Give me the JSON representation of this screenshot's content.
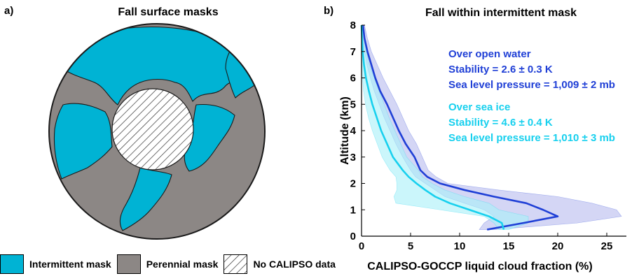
{
  "panel_a": {
    "label": "a)",
    "title": "Fall surface masks",
    "colors": {
      "intermittent": "#00b3d4",
      "perennial": "#8c8785",
      "outline": "#1a1a1a"
    },
    "legend": [
      {
        "name": "intermittent-mask",
        "label": "Intermittent mask",
        "color": "#00b3d4",
        "pattern": false
      },
      {
        "name": "perennial-mask",
        "label": "Perennial mask",
        "color": "#8c8785",
        "pattern": false
      },
      {
        "name": "no-calipso-data",
        "label": "No CALIPSO data",
        "color": "#ffffff",
        "pattern": true
      }
    ]
  },
  "chart_data": {
    "type": "line",
    "panel_label": "b)",
    "title": "Fall within intermittent mask",
    "xlabel": "CALIPSO-GOCCP liquid cloud fraction (%)",
    "ylabel": "Altitude (km)",
    "xlim": [
      0,
      27
    ],
    "ylim": [
      0,
      8
    ],
    "xticks": [
      0,
      5,
      10,
      15,
      20,
      25
    ],
    "yticks": [
      0,
      1,
      2,
      3,
      4,
      5,
      6,
      7,
      8
    ],
    "grid": false,
    "series": [
      {
        "name": "Over open water",
        "color": "#1f3fd6",
        "band_color": "#b8bbee",
        "annotation": [
          "Over open water",
          "Stability = 2.6 ± 0.3 K",
          "Sea level pressure = 1,009 ± 2 mb"
        ],
        "altitude": [
          0.25,
          0.5,
          0.75,
          1.0,
          1.25,
          1.5,
          1.75,
          2.0,
          2.25,
          2.5,
          2.75,
          3.0,
          3.5,
          4.0,
          4.5,
          5.0,
          5.5,
          6.0,
          6.5,
          7.0,
          7.5,
          8.0
        ],
        "x": [
          12.8,
          16.5,
          20.0,
          18.5,
          16.8,
          13.5,
          10.5,
          8.0,
          6.7,
          6.0,
          5.7,
          5.4,
          4.5,
          3.8,
          3.2,
          2.6,
          1.9,
          1.4,
          1.0,
          0.6,
          0.3,
          0.15
        ],
        "lower": [
          12.0,
          12.5,
          13.5,
          12.5,
          10.5,
          8.5,
          7.5,
          6.5,
          5.5,
          5.0,
          4.6,
          4.2,
          3.5,
          2.9,
          2.3,
          1.8,
          1.3,
          0.9,
          0.55,
          0.3,
          0.15,
          0.05
        ],
        "upper": [
          13.5,
          22.0,
          26.5,
          26.0,
          23.5,
          20.0,
          14.0,
          8.8,
          7.6,
          6.8,
          6.5,
          6.2,
          5.6,
          4.8,
          4.2,
          3.6,
          2.9,
          2.2,
          1.6,
          1.0,
          0.6,
          0.3
        ]
      },
      {
        "name": "Over sea ice",
        "color": "#17d0ee",
        "band_color": "#a8f0f8",
        "annotation": [
          "Over sea ice",
          "Stability = 4.6 ± 0.4 K",
          "Sea level pressure = 1,010 ± 3 mb"
        ],
        "altitude": [
          0.25,
          0.5,
          0.75,
          1.0,
          1.25,
          1.5,
          1.75,
          2.0,
          2.25,
          2.5,
          2.75,
          3.0,
          3.5,
          4.0,
          4.5,
          5.0,
          5.5,
          6.0,
          6.5,
          7.0,
          7.5,
          8.0
        ],
        "x": [
          14.5,
          14.3,
          13.0,
          11.0,
          9.0,
          7.5,
          6.5,
          5.6,
          4.8,
          4.2,
          3.7,
          3.2,
          2.6,
          2.0,
          1.55,
          1.1,
          0.75,
          0.45,
          0.25,
          0.12,
          0.05,
          0.0
        ],
        "lower": [
          14.0,
          13.5,
          12.5,
          8.0,
          3.5,
          3.3,
          3.6,
          3.6,
          3.5,
          2.9,
          2.5,
          2.1,
          1.6,
          1.1,
          0.7,
          0.4,
          0.2,
          0.1,
          0.05,
          0.0,
          0.0,
          0.0
        ],
        "upper": [
          15.0,
          17.0,
          17.0,
          14.0,
          13.0,
          10.5,
          8.5,
          7.2,
          6.2,
          5.8,
          5.2,
          4.6,
          4.0,
          3.4,
          2.8,
          2.3,
          1.8,
          1.3,
          0.8,
          0.5,
          0.25,
          0.1
        ]
      }
    ]
  }
}
